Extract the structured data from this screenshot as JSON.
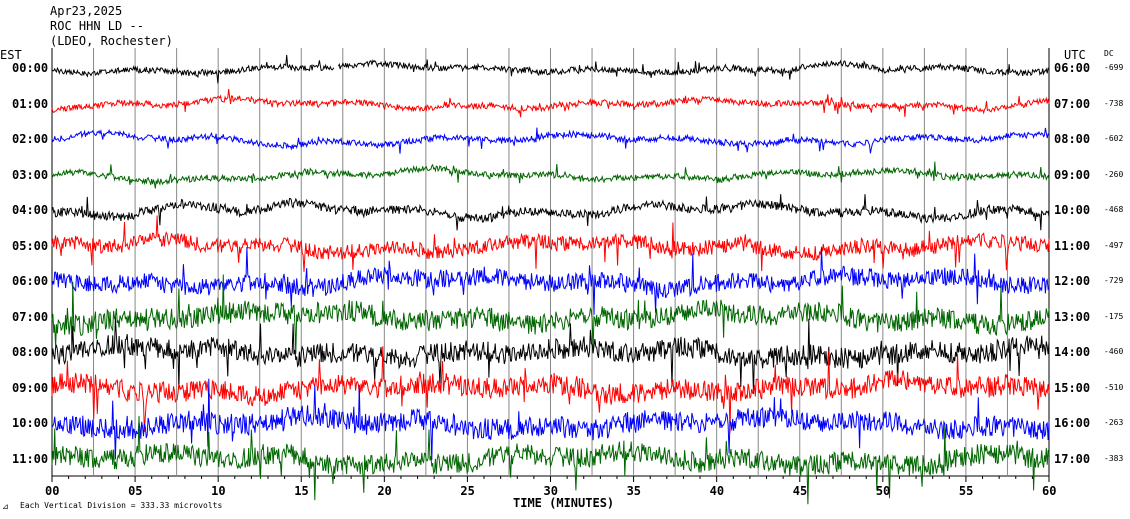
{
  "header": {
    "date": "Apr23,2025",
    "station": "ROC HHN LD --",
    "network": "(LDEO, Rochester)"
  },
  "labels": {
    "left_tz": "EST",
    "right_tz": "UTC",
    "dc_label": "DC",
    "xlabel": "TIME (MINUTES)",
    "scale_note": "Each Vertical Division = 333.33 microvolts"
  },
  "chart_data": {
    "type": "line",
    "title": "",
    "xlabel": "TIME (MINUTES)",
    "ylabel": "",
    "xlim": [
      0,
      60
    ],
    "x_ticks": [
      "00",
      "05",
      "10",
      "15",
      "20",
      "25",
      "30",
      "35",
      "40",
      "45",
      "50",
      "55",
      "60"
    ],
    "vertical_division_minutes": 2.5,
    "grid": true,
    "trace_colors": [
      "#000000",
      "#ff0000",
      "#0000ff",
      "#006600"
    ],
    "series": [
      {
        "est": "00:00",
        "utc": "06:00",
        "dc": "-699",
        "color": "#000000",
        "amplitude": 1,
        "gap_minutes": [
          17,
          17.2
        ]
      },
      {
        "est": "01:00",
        "utc": "07:00",
        "dc": "-738",
        "color": "#ff0000",
        "amplitude": 1
      },
      {
        "est": "02:00",
        "utc": "08:00",
        "dc": "-602",
        "color": "#0000ff",
        "amplitude": 1
      },
      {
        "est": "03:00",
        "utc": "09:00",
        "dc": "-260",
        "color": "#006600",
        "amplitude": 1
      },
      {
        "est": "04:00",
        "utc": "10:00",
        "dc": "-468",
        "color": "#000000",
        "amplitude": 1.5
      },
      {
        "est": "05:00",
        "utc": "11:00",
        "dc": "-497",
        "color": "#ff0000",
        "amplitude": 2.5
      },
      {
        "est": "06:00",
        "utc": "12:00",
        "dc": "-729",
        "color": "#0000ff",
        "amplitude": 3
      },
      {
        "est": "07:00",
        "utc": "13:00",
        "dc": "-175",
        "color": "#006600",
        "amplitude": 3.5
      },
      {
        "est": "08:00",
        "utc": "14:00",
        "dc": "-460",
        "color": "#000000",
        "amplitude": 3.5
      },
      {
        "est": "09:00",
        "utc": "15:00",
        "dc": "-510",
        "color": "#ff0000",
        "amplitude": 3.5
      },
      {
        "est": "10:00",
        "utc": "16:00",
        "dc": "-263",
        "color": "#0000ff",
        "amplitude": 3.5
      },
      {
        "est": "11:00",
        "utc": "17:00",
        "dc": "-383",
        "color": "#006600",
        "amplitude": 3.5
      }
    ]
  }
}
